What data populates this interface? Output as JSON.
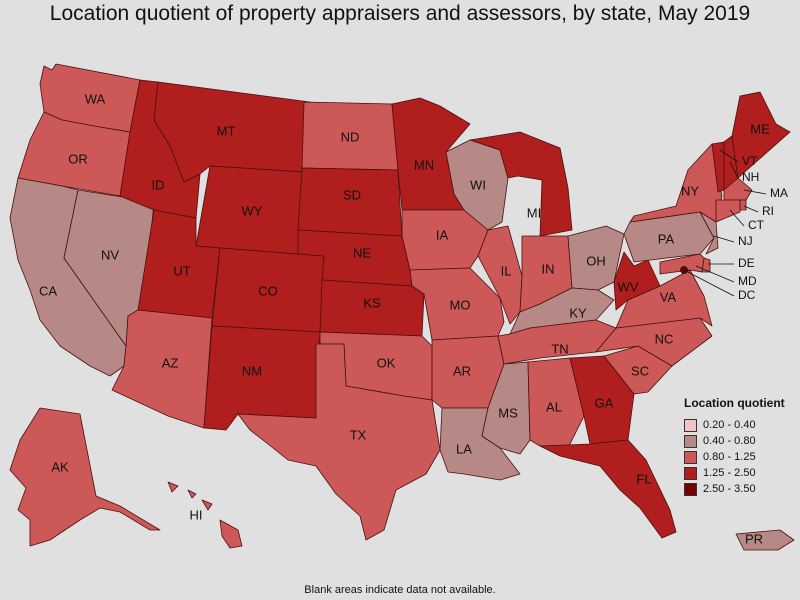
{
  "title": "Location quotient of property appraisers and assessors, by state, May 2019",
  "footnote": "Blank areas indicate data not available.",
  "legend": {
    "title": "Location quotient",
    "placement": "bottom-right",
    "items": [
      {
        "label": "0.20 - 0.40",
        "color": "#f4c2c6"
      },
      {
        "label": "0.40 - 0.80",
        "color": "#b68987"
      },
      {
        "label": "0.80 - 1.25",
        "color": "#cc5858"
      },
      {
        "label": "1.25 - 2.50",
        "color": "#b01e1e"
      },
      {
        "label": "2.50 - 3.50",
        "color": "#760000"
      }
    ]
  },
  "chart_data": {
    "type": "choropleth",
    "title": "Location quotient of property appraisers and assessors, by state, May 2019",
    "legend_title": "Location quotient",
    "bins": [
      "0.20 - 0.40",
      "0.40 - 0.80",
      "0.80 - 1.25",
      "1.25 - 2.50",
      "2.50 - 3.50"
    ],
    "states": {
      "WA": "0.80 - 1.25",
      "OR": "0.80 - 1.25",
      "CA": "0.40 - 0.80",
      "NV": "0.40 - 0.80",
      "ID": "1.25 - 2.50",
      "MT": "1.25 - 2.50",
      "WY": "1.25 - 2.50",
      "UT": "1.25 - 2.50",
      "CO": "1.25 - 2.50",
      "AZ": "0.80 - 1.25",
      "NM": "1.25 - 2.50",
      "ND": "0.80 - 1.25",
      "SD": "1.25 - 2.50",
      "NE": "1.25 - 2.50",
      "KS": "1.25 - 2.50",
      "OK": "0.80 - 1.25",
      "TX": "0.80 - 1.25",
      "MN": "1.25 - 2.50",
      "IA": "0.80 - 1.25",
      "MO": "0.80 - 1.25",
      "AR": "0.80 - 1.25",
      "LA": "0.40 - 0.80",
      "WI": "0.40 - 0.80",
      "IL": "0.80 - 1.25",
      "MI": "1.25 - 2.50",
      "IN": "0.80 - 1.25",
      "OH": "0.40 - 0.80",
      "KY": "0.40 - 0.80",
      "TN": "0.80 - 1.25",
      "MS": "0.40 - 0.80",
      "AL": "0.80 - 1.25",
      "GA": "1.25 - 2.50",
      "FL": "1.25 - 2.50",
      "SC": "0.80 - 1.25",
      "NC": "0.80 - 1.25",
      "VA": "0.80 - 1.25",
      "WV": "1.25 - 2.50",
      "PA": "0.40 - 0.80",
      "NY": "0.80 - 1.25",
      "VT": "1.25 - 2.50",
      "NH": "1.25 - 2.50",
      "ME": "1.25 - 2.50",
      "MA": "0.80 - 1.25",
      "RI": "0.80 - 1.25",
      "CT": "0.80 - 1.25",
      "NJ": "0.40 - 0.80",
      "DE": "0.80 - 1.25",
      "MD": "0.80 - 1.25",
      "DC": "2.50 - 3.50",
      "AK": "0.80 - 1.25",
      "HI": "0.80 - 1.25",
      "PR": "0.40 - 0.80"
    }
  }
}
